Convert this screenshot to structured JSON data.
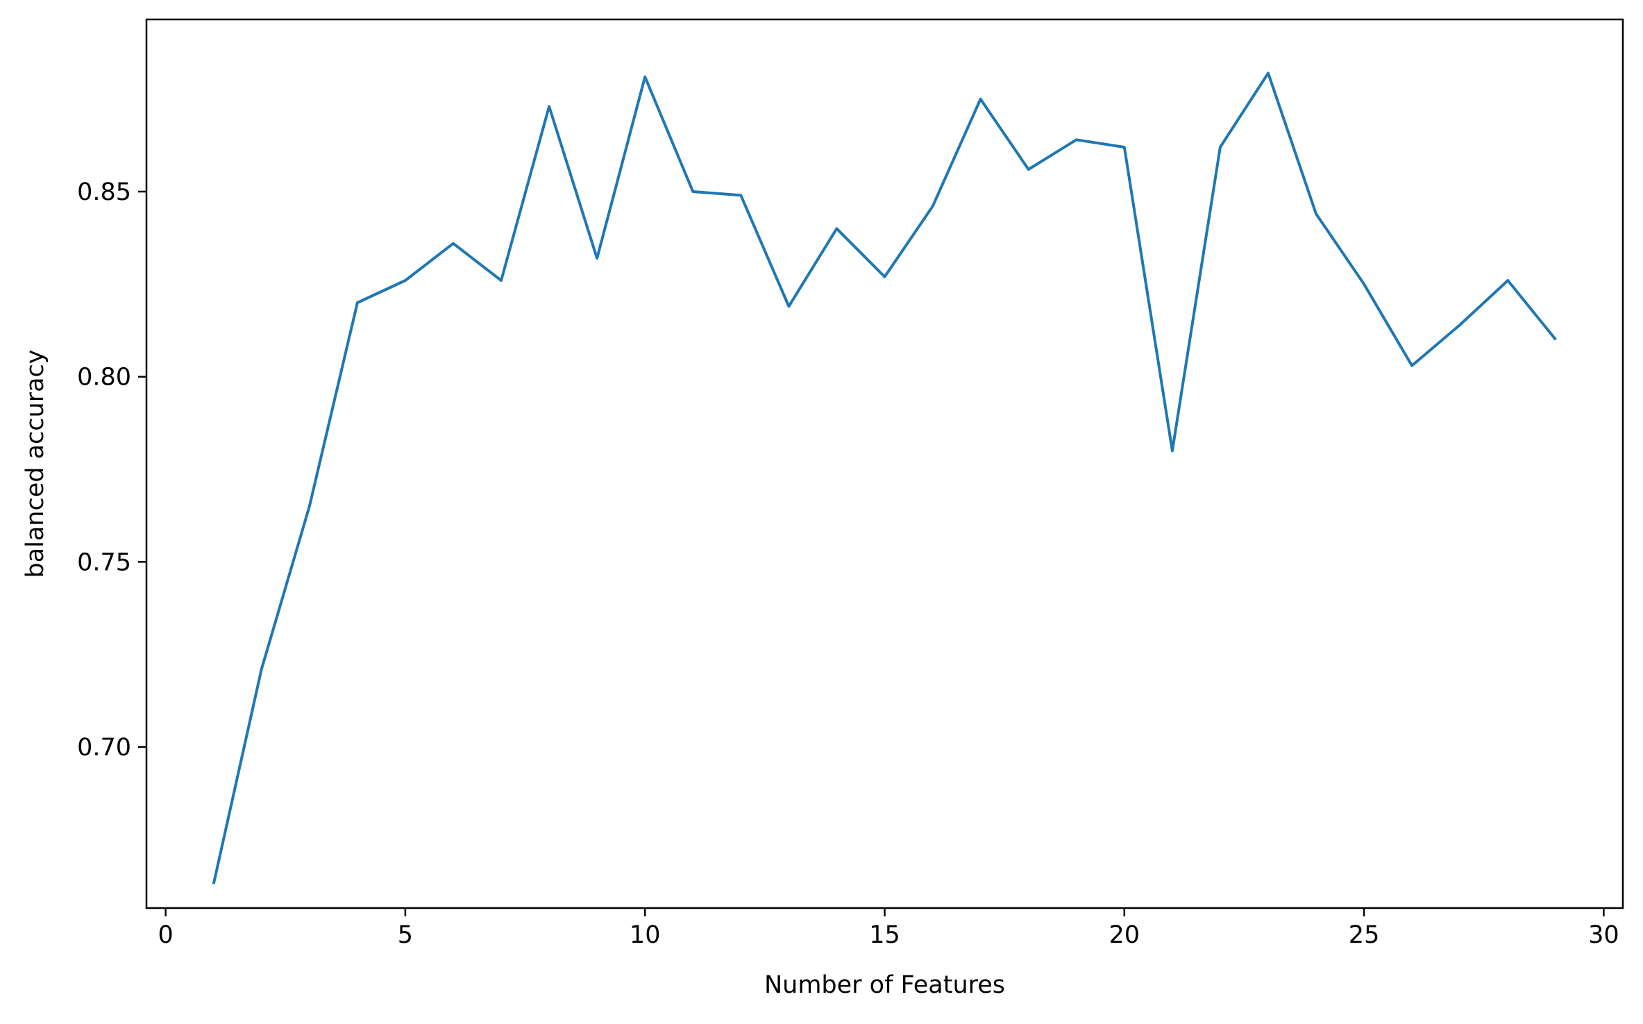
{
  "chart_data": {
    "type": "line",
    "title": "",
    "xlabel": "Number of Features",
    "ylabel": "balanced accuracy",
    "xlim": [
      -0.4,
      30.4
    ],
    "ylim": [
      0.6565,
      0.8965
    ],
    "xticks": [
      0,
      5,
      10,
      15,
      20,
      25,
      30
    ],
    "xtick_labels": [
      "0",
      "5",
      "10",
      "15",
      "20",
      "25",
      "30"
    ],
    "yticks": [
      0.7,
      0.75,
      0.8,
      0.85
    ],
    "ytick_labels": [
      "0.70",
      "0.75",
      "0.80",
      "0.85"
    ],
    "grid": false,
    "legend": "none",
    "series": [
      {
        "color": "#1f77b4",
        "x": [
          1,
          2,
          3,
          4,
          5,
          6,
          7,
          8,
          9,
          10,
          11,
          12,
          13,
          14,
          15,
          16,
          17,
          18,
          19,
          20,
          21,
          22,
          23,
          24,
          25,
          26,
          27,
          28,
          29
        ],
        "y": [
          0.663,
          0.721,
          0.765,
          0.82,
          0.826,
          0.836,
          0.826,
          0.873,
          0.832,
          0.881,
          0.85,
          0.849,
          0.819,
          0.84,
          0.827,
          0.846,
          0.875,
          0.856,
          0.864,
          0.862,
          0.78,
          0.862,
          0.882,
          0.844,
          0.825,
          0.803,
          0.814,
          0.826,
          0.81
        ]
      }
    ]
  }
}
